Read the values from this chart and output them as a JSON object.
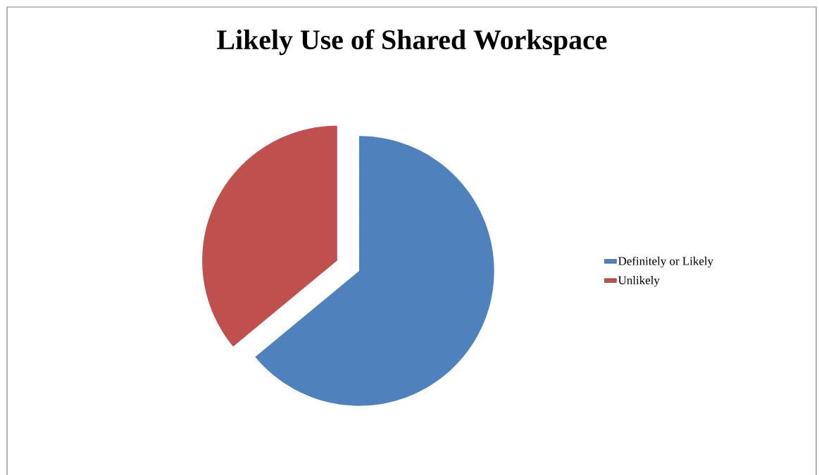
{
  "chart_data": {
    "type": "pie",
    "title": "Likely Use of Shared Workspace",
    "categories": [
      "Definitely or Likely",
      "Unlikely"
    ],
    "values": [
      64,
      36
    ],
    "colors": [
      "#4f81bd",
      "#c0504d"
    ],
    "legend": "right"
  }
}
